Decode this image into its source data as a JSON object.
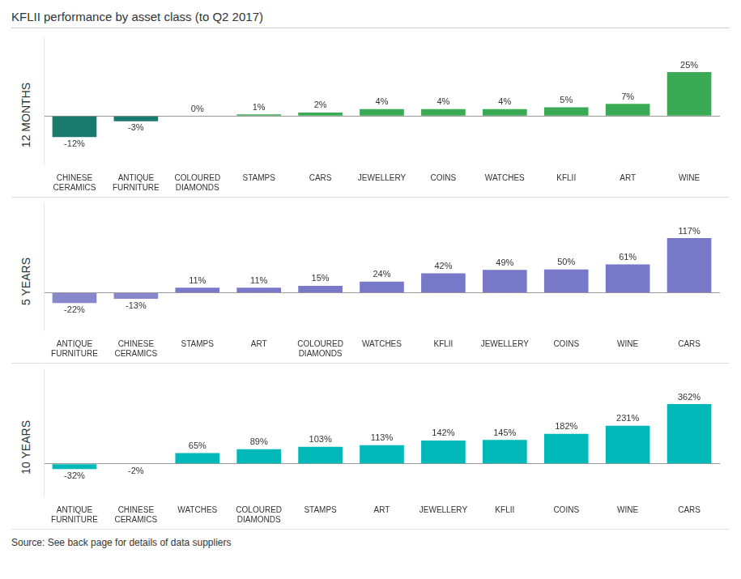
{
  "title": "KFLII performance by asset class (to Q2 2017)",
  "annotations": [
    "Source: See back page for details of data suppliers"
  ],
  "chart_data": [
    {
      "type": "bar",
      "title": "12 MONTHS",
      "categories": [
        "CHINESE\nCERAMICS",
        "ANTIQUE\nFURNITURE",
        "COLOURED\nDIAMONDS",
        "STAMPS",
        "CARS",
        "JEWELLERY",
        "COINS",
        "WATCHES",
        "KFLII",
        "ART",
        "WINE"
      ],
      "values": [
        -12,
        -3,
        0,
        1,
        2,
        4,
        4,
        4,
        5,
        7,
        25
      ],
      "value_labels": [
        "-12%",
        "-3%",
        "0%",
        "1%",
        "2%",
        "4%",
        "4%",
        "4%",
        "5%",
        "7%",
        "25%"
      ],
      "colors": [
        "#1a7a6e",
        "#1a7a6e",
        "#3aaa55",
        "#3aaa55",
        "#3aaa55",
        "#3aaa55",
        "#3aaa55",
        "#3aaa55",
        "#3aaa55",
        "#3aaa55",
        "#3aaa55"
      ],
      "ylim": [
        -27.54,
        45.35
      ],
      "yticks": [
        0
      ],
      "grid": true,
      "tick_labels": "x",
      "data_labels": true
    },
    {
      "type": "bar",
      "title": "5 YEARS",
      "categories": [
        "ANTIQUE\nFURNITURE",
        "CHINESE\nCERAMICS",
        "STAMPS",
        "ART",
        "COLOURED\nDIAMONDS",
        "WATCHES",
        "KFLII",
        "JEWELLERY",
        "COINS",
        "WINE",
        "CARS"
      ],
      "values": [
        -22,
        -13,
        11,
        11,
        15,
        24,
        42,
        49,
        50,
        61,
        117
      ],
      "value_labels": [
        "-22%",
        "-13%",
        "11%",
        "11%",
        "15%",
        "24%",
        "42%",
        "49%",
        "50%",
        "61%",
        "117%"
      ],
      "colors": [
        "#8888cc",
        "#8888cc",
        "#7878c8",
        "#7878c8",
        "#7878c8",
        "#7878c8",
        "#7878c8",
        "#7878c8",
        "#7878c8",
        "#7878c8",
        "#7878c8"
      ],
      "ylim": [
        -80.38,
        193.45
      ],
      "yticks": [
        0
      ],
      "grid": true,
      "tick_labels": "x",
      "data_labels": true
    },
    {
      "type": "bar",
      "title": "10 YEARS",
      "categories": [
        "ANTIQUE\nFURNITURE",
        "CHINESE\nCERAMICS",
        "WATCHES",
        "COLOURED\nDIAMONDS",
        "STAMPS",
        "ART",
        "JEWELLERY",
        "KFLII",
        "COINS",
        "WINE",
        "CARS"
      ],
      "values": [
        -32,
        -2,
        65,
        89,
        103,
        113,
        142,
        145,
        182,
        231,
        362
      ],
      "value_labels": [
        "-32%",
        "-2%",
        "65%",
        "89%",
        "103%",
        "113%",
        "142%",
        "145%",
        "182%",
        "231%",
        "362%"
      ],
      "colors": [
        "#00b8b8",
        "#00b8b8",
        "#00b8b8",
        "#00b8b8",
        "#00b8b8",
        "#00b8b8",
        "#00b8b8",
        "#00b8b8",
        "#00b8b8",
        "#00b8b8",
        "#00b8b8"
      ],
      "ylim": [
        -197.48,
        578.7
      ],
      "yticks": [
        0
      ],
      "grid": true,
      "tick_labels": "x",
      "data_labels": true
    }
  ]
}
